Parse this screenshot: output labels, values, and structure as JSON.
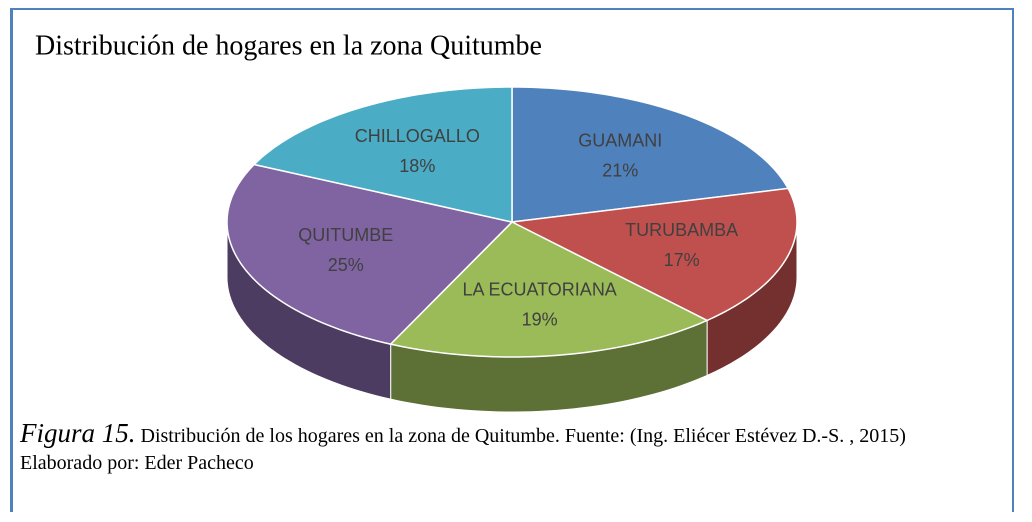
{
  "chart_data": {
    "type": "pie",
    "title": "Distribución de hogares en la zona Quitumbe",
    "categories": [
      "GUAMANI",
      "TURUBAMBA",
      "LA ECUATORIANA",
      "QUITUMBE",
      "CHILLOGALLO"
    ],
    "values": [
      21,
      17,
      19,
      25,
      18
    ],
    "value_labels": [
      "21%",
      "17%",
      "19%",
      "25%",
      "18%"
    ],
    "colors": [
      "#4f81bd",
      "#c0504d",
      "#9bbb59",
      "#8064a2",
      "#4bacc6"
    ]
  },
  "caption": {
    "figure": "Figura 15.",
    "text": "Distribución de los hogares en la zona de Quitumbe. Fuente: (Ing. Eliécer Estévez D.-S. , 2015)",
    "credit": "Elaborado por: Eder Pacheco"
  }
}
